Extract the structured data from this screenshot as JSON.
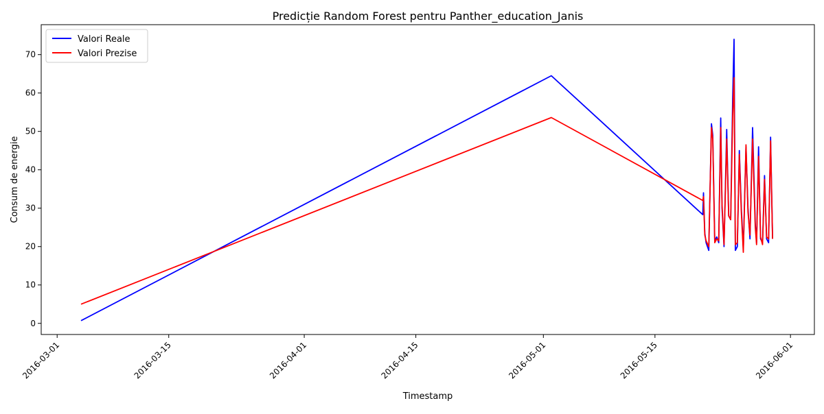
{
  "chart_data": {
    "type": "line",
    "title": "Predicție Random Forest pentru Panther_education_Janis",
    "xlabel": "Timestamp",
    "ylabel": "Consum de energie",
    "x_axis_type": "date",
    "xlim": [
      "2016-02-28T00:00",
      "2016-06-04T00:00"
    ],
    "ylim": [
      -2.9,
      77.8
    ],
    "x_ticks": [
      "2016-03-01",
      "2016-03-15",
      "2016-04-01",
      "2016-04-15",
      "2016-05-01",
      "2016-05-15",
      "2016-06-01"
    ],
    "y_ticks": [
      0,
      10,
      20,
      30,
      40,
      50,
      60,
      70
    ],
    "grid": false,
    "legend_position": "top-left",
    "colors": {
      "Valori Reale": "#0000ff",
      "Valori Prezise": "#ff0000"
    },
    "series": [
      {
        "name": "Valori Reale",
        "color": "#0000ff",
        "points": [
          [
            "2016-03-04T00:00",
            0.7
          ],
          [
            "2016-05-02T00:00",
            64.5
          ],
          [
            "2016-05-21T00:00",
            28.3
          ],
          [
            "2016-05-21T02:00",
            34.0
          ],
          [
            "2016-05-21T06:00",
            23.5
          ],
          [
            "2016-05-21T10:00",
            21.0
          ],
          [
            "2016-05-21T18:00",
            19.0
          ],
          [
            "2016-05-22T02:00",
            52.0
          ],
          [
            "2016-05-22T06:00",
            49.0
          ],
          [
            "2016-05-22T12:00",
            21.5
          ],
          [
            "2016-05-22T18:00",
            22.5
          ],
          [
            "2016-05-23T00:00",
            21.0
          ],
          [
            "2016-05-23T06:00",
            53.5
          ],
          [
            "2016-05-23T10:00",
            30.0
          ],
          [
            "2016-05-23T16:00",
            20.0
          ],
          [
            "2016-05-24T00:00",
            50.5
          ],
          [
            "2016-05-24T06:00",
            28.0
          ],
          [
            "2016-05-24T12:00",
            27.0
          ],
          [
            "2016-05-24T18:00",
            58.5
          ],
          [
            "2016-05-24T22:00",
            74.0
          ],
          [
            "2016-05-25T02:00",
            19.0
          ],
          [
            "2016-05-25T08:00",
            20.0
          ],
          [
            "2016-05-25T14:00",
            45.0
          ],
          [
            "2016-05-25T20:00",
            30.0
          ],
          [
            "2016-05-26T02:00",
            19.5
          ],
          [
            "2016-05-26T10:00",
            46.0
          ],
          [
            "2016-05-26T16:00",
            30.0
          ],
          [
            "2016-05-26T22:00",
            22.0
          ],
          [
            "2016-05-27T06:00",
            51.0
          ],
          [
            "2016-05-27T14:00",
            26.0
          ],
          [
            "2016-05-27T18:00",
            21.0
          ],
          [
            "2016-05-28T00:00",
            46.0
          ],
          [
            "2016-05-28T06:00",
            22.0
          ],
          [
            "2016-05-28T12:00",
            21.0
          ],
          [
            "2016-05-28T18:00",
            38.5
          ],
          [
            "2016-05-29T00:00",
            22.0
          ],
          [
            "2016-05-29T06:00",
            21.0
          ],
          [
            "2016-05-29T12:00",
            48.5
          ],
          [
            "2016-05-29T18:00",
            22.0
          ]
        ]
      },
      {
        "name": "Valori Prezise",
        "color": "#ff0000",
        "points": [
          [
            "2016-03-04T00:00",
            5.0
          ],
          [
            "2016-05-02T00:00",
            53.6
          ],
          [
            "2016-05-21T00:00",
            32.0
          ],
          [
            "2016-05-21T02:00",
            33.0
          ],
          [
            "2016-05-21T06:00",
            23.0
          ],
          [
            "2016-05-21T10:00",
            21.5
          ],
          [
            "2016-05-21T18:00",
            20.0
          ],
          [
            "2016-05-22T02:00",
            51.0
          ],
          [
            "2016-05-22T06:00",
            48.0
          ],
          [
            "2016-05-22T12:00",
            21.0
          ],
          [
            "2016-05-22T18:00",
            22.0
          ],
          [
            "2016-05-23T00:00",
            21.5
          ],
          [
            "2016-05-23T06:00",
            51.0
          ],
          [
            "2016-05-23T10:00",
            31.0
          ],
          [
            "2016-05-23T16:00",
            20.5
          ],
          [
            "2016-05-24T00:00",
            48.0
          ],
          [
            "2016-05-24T06:00",
            28.0
          ],
          [
            "2016-05-24T12:00",
            27.0
          ],
          [
            "2016-05-24T18:00",
            54.0
          ],
          [
            "2016-05-24T22:00",
            64.0
          ],
          [
            "2016-05-25T02:00",
            20.5
          ],
          [
            "2016-05-25T08:00",
            21.0
          ],
          [
            "2016-05-25T14:00",
            44.0
          ],
          [
            "2016-05-25T20:00",
            29.0
          ],
          [
            "2016-05-26T02:00",
            18.5
          ],
          [
            "2016-05-26T10:00",
            46.5
          ],
          [
            "2016-05-26T16:00",
            29.0
          ],
          [
            "2016-05-26T22:00",
            23.0
          ],
          [
            "2016-05-27T06:00",
            48.0
          ],
          [
            "2016-05-27T14:00",
            25.0
          ],
          [
            "2016-05-27T18:00",
            20.5
          ],
          [
            "2016-05-28T00:00",
            43.5
          ],
          [
            "2016-05-28T06:00",
            22.5
          ],
          [
            "2016-05-28T12:00",
            20.5
          ],
          [
            "2016-05-28T18:00",
            37.5
          ],
          [
            "2016-05-29T00:00",
            22.5
          ],
          [
            "2016-05-29T06:00",
            22.0
          ],
          [
            "2016-05-29T12:00",
            47.5
          ],
          [
            "2016-05-29T18:00",
            22.0
          ]
        ]
      }
    ]
  }
}
